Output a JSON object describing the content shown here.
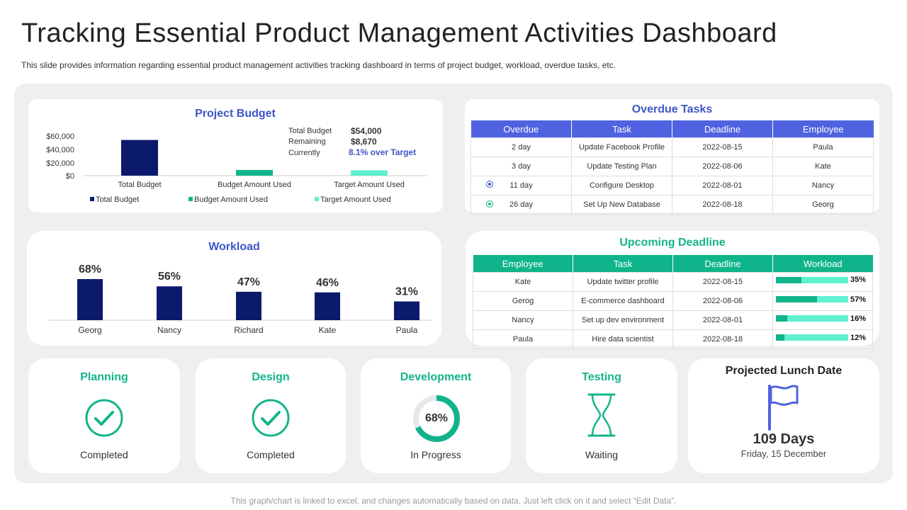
{
  "title": "Tracking Essential Product Management Activities Dashboard",
  "subtitle": "This slide provides information regarding essential product management activities tracking dashboard in terms of project budget, workload, overdue tasks, etc.",
  "colors": {
    "navy": "#0b1a6b",
    "teal": "#10b48a",
    "aqua": "#5ff0cf",
    "blue_accent": "#3d56c8",
    "green_accent": "#14b48a"
  },
  "budget": {
    "title": "Project Budget",
    "total_label": "Total Budget",
    "total_value": "$54,000",
    "remaining_label": "Remaining",
    "remaining_value": "$8,670",
    "currently_label": "Currently",
    "currently_value": "8.1% over Target",
    "chart_data": {
      "type": "bar",
      "categories": [
        "Total Budget",
        "Budget Amount Used",
        "Target Amount Used"
      ],
      "values": [
        54000,
        8670,
        8100
      ],
      "ylim": [
        0,
        60000
      ],
      "yticks": [
        "$60,000",
        "$40,000",
        "$20,000",
        "$0"
      ],
      "legend": [
        "Total Budget",
        "Budget Amount Used",
        "Target Amount Used"
      ]
    }
  },
  "workload": {
    "title": "Workload",
    "chart_data": {
      "type": "bar",
      "categories": [
        "Georg",
        "Nancy",
        "Richard",
        "Kate",
        "Paula"
      ],
      "values": [
        68,
        56,
        47,
        46,
        31
      ],
      "labels": [
        "68%",
        "56%",
        "47%",
        "46%",
        "31%"
      ]
    }
  },
  "overdue": {
    "title": "Overdue Tasks",
    "headers": [
      "Overdue",
      "Task",
      "Deadline",
      "Employee"
    ],
    "rows": [
      {
        "overdue": "2 day",
        "task": "Update Facebook Profile",
        "deadline": "2022-08-15",
        "employee": "Paula"
      },
      {
        "overdue": "3 day",
        "task": "Update Testing Plan",
        "deadline": "2022-08-06",
        "employee": "Kate"
      },
      {
        "overdue": "11 day",
        "task": "Configure Desktop",
        "deadline": "2022-08-01",
        "employee": "Nancy"
      },
      {
        "overdue": "26 day",
        "task": "Set Up New Database",
        "deadline": "2022-08-18",
        "employee": "Georg"
      }
    ]
  },
  "upcoming": {
    "title": "Upcoming Deadline",
    "headers": [
      "Employee",
      "Task",
      "Deadline",
      "Workload"
    ],
    "rows": [
      {
        "employee": "Kate",
        "task": "Update  twitter profile",
        "deadline": "2022-08-15",
        "workload": 0.35,
        "label": "35%"
      },
      {
        "employee": "Gerog",
        "task": "E-commerce dashboard",
        "deadline": "2022-08-06",
        "workload": 0.57,
        "label": "57%"
      },
      {
        "employee": "Nancy",
        "task": "Set up dev environment",
        "deadline": "2022-08-01",
        "workload": 0.16,
        "label": "16%"
      },
      {
        "employee": "Paula",
        "task": "Hire data scientist",
        "deadline": "2022-08-18",
        "workload": 0.12,
        "label": "12%"
      }
    ]
  },
  "phases": {
    "planning": {
      "title": "Planning",
      "status": "Completed",
      "icon": "check-circle-icon"
    },
    "design": {
      "title": "Design",
      "status": "Completed",
      "icon": "check-circle-icon"
    },
    "development": {
      "title": "Development",
      "status": "In Progress",
      "progress": 0.68,
      "label": "68%"
    },
    "testing": {
      "title": "Testing",
      "status": "Waiting",
      "icon": "hourglass-icon"
    }
  },
  "launch": {
    "title": "Projected Lunch Date",
    "days": "109 Days",
    "date": "Friday, 15 December",
    "icon": "flag-icon"
  },
  "footer": "This graph/chart is linked to excel, and changes automatically based on data. Just left click on it and select “Edit Data”."
}
